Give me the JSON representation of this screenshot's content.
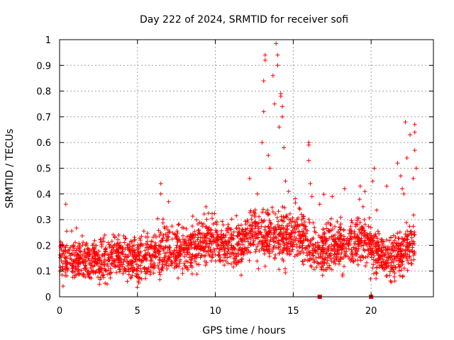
{
  "chart_data": {
    "type": "scatter",
    "title": "Day 222 of 2024, SRMTID for receiver sofi",
    "xlabel": "GPS time / hours",
    "ylabel": "SRMTID / TECUs",
    "xlim": [
      0,
      24
    ],
    "ylim": [
      0,
      1
    ],
    "x_ticks": [
      0,
      5,
      10,
      15,
      20
    ],
    "x_tick_labels": [
      "0",
      "5",
      "10",
      "15",
      "20"
    ],
    "y_ticks": [
      0,
      0.1,
      0.2,
      0.3,
      0.4,
      0.5,
      0.6,
      0.7,
      0.8,
      0.9,
      1
    ],
    "y_tick_labels": [
      "0",
      "0.1",
      "0.2",
      "0.3",
      "0.4",
      "0.5",
      "0.6",
      "0.7",
      "0.8",
      "0.9",
      "1"
    ],
    "grid": true,
    "marker": "+",
    "color": "#ff0000",
    "series": [
      {
        "name": "SRMTID",
        "description": "dense scatter, approx. 3000 points, 0–22.8 h",
        "x_range": [
          0.0,
          22.8
        ],
        "baseline_profile": [
          {
            "x": 0,
            "y": 0.15
          },
          {
            "x": 2,
            "y": 0.14
          },
          {
            "x": 4,
            "y": 0.15
          },
          {
            "x": 5,
            "y": 0.14
          },
          {
            "x": 6.5,
            "y": 0.18
          },
          {
            "x": 8,
            "y": 0.18
          },
          {
            "x": 9.5,
            "y": 0.22
          },
          {
            "x": 11,
            "y": 0.19
          },
          {
            "x": 12.5,
            "y": 0.24
          },
          {
            "x": 14,
            "y": 0.22
          },
          {
            "x": 15.5,
            "y": 0.24
          },
          {
            "x": 16.5,
            "y": 0.17
          },
          {
            "x": 18,
            "y": 0.2
          },
          {
            "x": 19.5,
            "y": 0.22
          },
          {
            "x": 21,
            "y": 0.14
          },
          {
            "x": 22,
            "y": 0.17
          },
          {
            "x": 22.8,
            "y": 0.22
          }
        ],
        "notable_points": [
          {
            "x": 0.4,
            "y": 0.36
          },
          {
            "x": 6.5,
            "y": 0.44
          },
          {
            "x": 6.5,
            "y": 0.4
          },
          {
            "x": 7.0,
            "y": 0.37
          },
          {
            "x": 9.4,
            "y": 0.35
          },
          {
            "x": 12.2,
            "y": 0.46
          },
          {
            "x": 12.7,
            "y": 0.4
          },
          {
            "x": 13.0,
            "y": 0.6
          },
          {
            "x": 13.1,
            "y": 0.72
          },
          {
            "x": 13.1,
            "y": 0.84
          },
          {
            "x": 13.2,
            "y": 0.94
          },
          {
            "x": 13.2,
            "y": 0.92
          },
          {
            "x": 13.4,
            "y": 0.55
          },
          {
            "x": 13.5,
            "y": 0.5
          },
          {
            "x": 13.7,
            "y": 0.86
          },
          {
            "x": 13.8,
            "y": 0.75
          },
          {
            "x": 13.9,
            "y": 0.985
          },
          {
            "x": 14.0,
            "y": 0.94
          },
          {
            "x": 14.0,
            "y": 0.9
          },
          {
            "x": 14.1,
            "y": 0.66
          },
          {
            "x": 14.2,
            "y": 0.79
          },
          {
            "x": 14.2,
            "y": 0.78
          },
          {
            "x": 14.3,
            "y": 0.74
          },
          {
            "x": 14.3,
            "y": 0.7
          },
          {
            "x": 14.4,
            "y": 0.58
          },
          {
            "x": 14.5,
            "y": 0.45
          },
          {
            "x": 14.7,
            "y": 0.41
          },
          {
            "x": 16.0,
            "y": 0.6
          },
          {
            "x": 16.0,
            "y": 0.59
          },
          {
            "x": 16.0,
            "y": 0.53
          },
          {
            "x": 16.1,
            "y": 0.44
          },
          {
            "x": 16.2,
            "y": 0.39
          },
          {
            "x": 16.7,
            "y": 0.36
          },
          {
            "x": 17.5,
            "y": 0.39
          },
          {
            "x": 18.3,
            "y": 0.42
          },
          {
            "x": 19.3,
            "y": 0.43
          },
          {
            "x": 19.6,
            "y": 0.41
          },
          {
            "x": 20.2,
            "y": 0.5
          },
          {
            "x": 20.1,
            "y": 0.45
          },
          {
            "x": 21.0,
            "y": 0.43
          },
          {
            "x": 21.7,
            "y": 0.52
          },
          {
            "x": 21.9,
            "y": 0.47
          },
          {
            "x": 22.0,
            "y": 0.42
          },
          {
            "x": 22.1,
            "y": 0.4
          },
          {
            "x": 22.2,
            "y": 0.68
          },
          {
            "x": 22.3,
            "y": 0.54
          },
          {
            "x": 22.5,
            "y": 0.63
          },
          {
            "x": 22.8,
            "y": 0.67
          },
          {
            "x": 22.8,
            "y": 0.64
          },
          {
            "x": 22.8,
            "y": 0.57
          },
          {
            "x": 22.7,
            "y": 0.46
          },
          {
            "x": 22.9,
            "y": 0.5
          }
        ]
      }
    ],
    "zero_markers": [
      {
        "x": 16.7,
        "y": 0
      },
      {
        "x": 20.0,
        "y": 0
      }
    ]
  }
}
